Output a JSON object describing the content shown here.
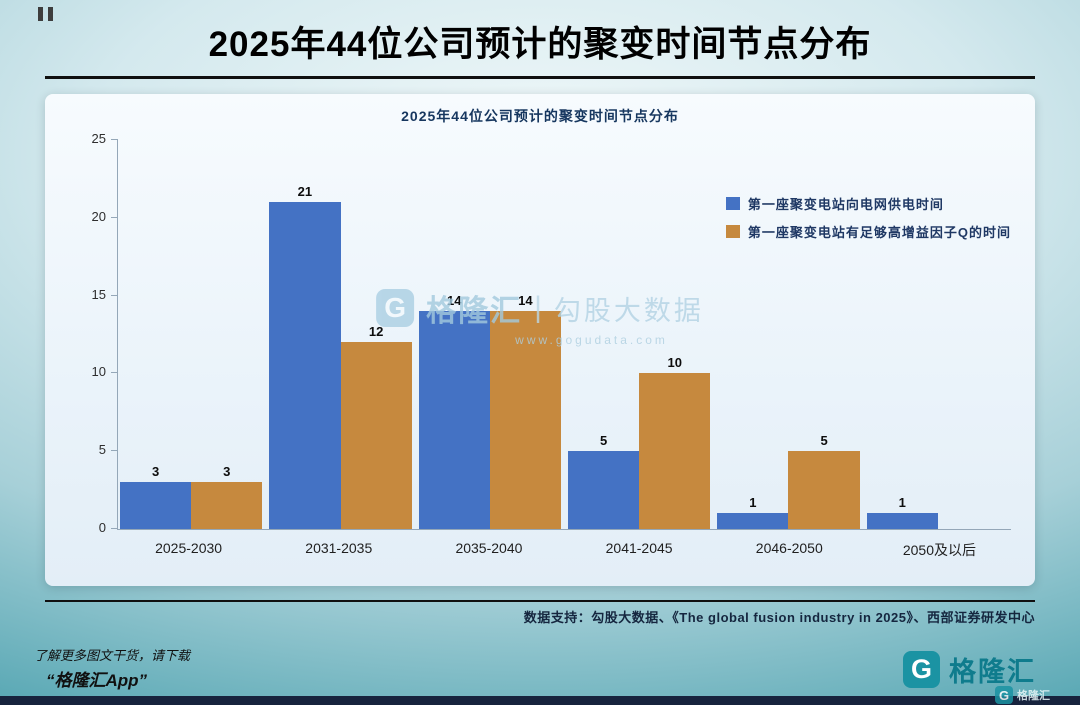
{
  "header": {
    "title": "2025年44位公司预计的聚变时间节点分布"
  },
  "chart_data": {
    "type": "bar",
    "title": "2025年44位公司预计的聚变时间节点分布",
    "categories": [
      "2025-2030",
      "2031-2035",
      "2035-2040",
      "2041-2045",
      "2046-2050",
      "2050及以后"
    ],
    "series": [
      {
        "name": "第一座聚变电站向电网供电时间",
        "color": "#4472c4",
        "values": [
          3,
          21,
          14,
          5,
          1,
          1
        ]
      },
      {
        "name": "第一座聚变电站有足够高增益因子Q的时间",
        "color": "#c6893e",
        "values": [
          3,
          12,
          14,
          10,
          5,
          null
        ]
      }
    ],
    "ylim": [
      0,
      25
    ],
    "yticks": [
      0,
      5,
      10,
      15,
      20,
      25
    ],
    "legend_position": "top-right",
    "grid": false
  },
  "watermark": {
    "logo_letter": "G",
    "brand": "格隆汇",
    "separator": "|",
    "product": "勾股大数据",
    "url": "www.gogudata.com"
  },
  "source": {
    "text": "数据支持：勾股大数据、《The global fusion industry in 2025》、西部证券研发中心"
  },
  "footer": {
    "promo_line1": "了解更多图文干货，请下载",
    "promo_line2": "“格隆汇App”",
    "brand_letter": "G",
    "brand_text": "格隆汇"
  }
}
